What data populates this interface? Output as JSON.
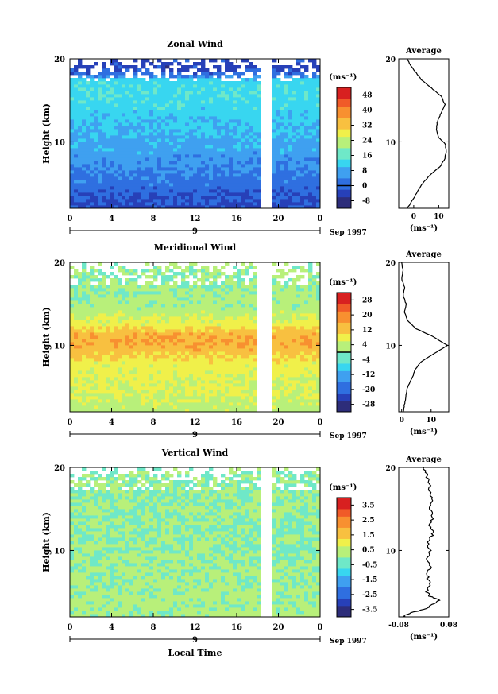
{
  "chart_data": [
    {
      "type": "heatmap",
      "title": "Zonal Wind",
      "ylabel": "Height (km)",
      "xticks": [
        "0",
        "4",
        "8",
        "12",
        "16",
        "20",
        "0"
      ],
      "yticks": [
        "10",
        "20"
      ],
      "ylim": [
        2,
        20
      ],
      "xlim": [
        0,
        24
      ],
      "date_ticks": [
        "9"
      ],
      "date_label": "Sep 1997",
      "colorbar": {
        "unit": "(ms⁻¹)",
        "ticks": [
          "-8",
          "0",
          "8",
          "16",
          "24",
          "32",
          "40",
          "48"
        ],
        "min": -12,
        "max": 52,
        "zero_line": 0
      },
      "profile_by_height": [
        {
          "h": 2,
          "v": -3
        },
        {
          "h": 4,
          "v": 0
        },
        {
          "h": 6,
          "v": 3
        },
        {
          "h": 8,
          "v": 6
        },
        {
          "h": 10,
          "v": 8
        },
        {
          "h": 12,
          "v": 10
        },
        {
          "h": 14,
          "v": 12
        },
        {
          "h": 16,
          "v": 14
        },
        {
          "h": 17.5,
          "v": 12
        },
        {
          "h": 18,
          "v": 2
        },
        {
          "h": 19,
          "v": -4
        },
        {
          "h": 20,
          "v": -2
        }
      ],
      "gap_hours": [
        [
          18.2,
          19.3
        ]
      ],
      "average": {
        "title": "Average",
        "xlabel": "(ms⁻¹)",
        "xticks": [
          "0",
          "10"
        ],
        "xlim": [
          -6,
          14
        ],
        "points": [
          {
            "h": 2,
            "v": -2.5
          },
          {
            "h": 3,
            "v": -0.5
          },
          {
            "h": 4,
            "v": 1.5
          },
          {
            "h": 5,
            "v": 3.5
          },
          {
            "h": 6,
            "v": 6.5
          },
          {
            "h": 7,
            "v": 10.5
          },
          {
            "h": 8,
            "v": 12.5
          },
          {
            "h": 9,
            "v": 13
          },
          {
            "h": 9.8,
            "v": 12.5
          },
          {
            "h": 10.5,
            "v": 10
          },
          {
            "h": 11.5,
            "v": 9
          },
          {
            "h": 12.5,
            "v": 9.5
          },
          {
            "h": 13.5,
            "v": 11
          },
          {
            "h": 14.5,
            "v": 12.5
          },
          {
            "h": 15.5,
            "v": 11
          },
          {
            "h": 16.5,
            "v": 7
          },
          {
            "h": 17.5,
            "v": 3
          },
          {
            "h": 18.5,
            "v": 0.5
          },
          {
            "h": 19.3,
            "v": -1.5
          },
          {
            "h": 20,
            "v": -2.5
          }
        ]
      }
    },
    {
      "type": "heatmap",
      "title": "Meridional Wind",
      "ylabel": "Height (km)",
      "xticks": [
        "0",
        "4",
        "8",
        "12",
        "16",
        "20",
        "0"
      ],
      "yticks": [
        "10",
        "20"
      ],
      "ylim": [
        2,
        20
      ],
      "xlim": [
        0,
        24
      ],
      "date_ticks": [
        "9"
      ],
      "date_label": "Sep 1997",
      "colorbar": {
        "unit": "(ms⁻¹)",
        "ticks": [
          "-28",
          "-20",
          "-12",
          "-4",
          "4",
          "12",
          "20",
          "28"
        ],
        "min": -32,
        "max": 32,
        "zero_line": 0
      },
      "profile_by_height": [
        {
          "h": 2,
          "v": 3
        },
        {
          "h": 4,
          "v": 5
        },
        {
          "h": 6,
          "v": 6
        },
        {
          "h": 8,
          "v": 8
        },
        {
          "h": 9.5,
          "v": 14
        },
        {
          "h": 10.5,
          "v": 16
        },
        {
          "h": 11.5,
          "v": 14
        },
        {
          "h": 12.5,
          "v": 8
        },
        {
          "h": 14,
          "v": 3
        },
        {
          "h": 16,
          "v": 1
        },
        {
          "h": 18,
          "v": 0
        },
        {
          "h": 20,
          "v": 1
        }
      ],
      "gap_hours": [
        [
          17.9,
          19.6
        ]
      ],
      "average": {
        "title": "Average",
        "xlabel": "(ms⁻¹)",
        "xticks": [
          "0",
          "10"
        ],
        "xlim": [
          -1,
          16
        ],
        "points": [
          {
            "h": 2,
            "v": 0.5
          },
          {
            "h": 3,
            "v": 1
          },
          {
            "h": 4,
            "v": 1.5
          },
          {
            "h": 5,
            "v": 2
          },
          {
            "h": 6,
            "v": 3.5
          },
          {
            "h": 7,
            "v": 4.5
          },
          {
            "h": 8,
            "v": 6.5
          },
          {
            "h": 9,
            "v": 11
          },
          {
            "h": 10,
            "v": 15.5
          },
          {
            "h": 11,
            "v": 11
          },
          {
            "h": 12,
            "v": 5
          },
          {
            "h": 13,
            "v": 2
          },
          {
            "h": 14,
            "v": 1
          },
          {
            "h": 15,
            "v": 1.5
          },
          {
            "h": 16,
            "v": 0.5
          },
          {
            "h": 17,
            "v": 1
          },
          {
            "h": 18,
            "v": 0
          },
          {
            "h": 19,
            "v": 0.5
          },
          {
            "h": 20,
            "v": 0
          }
        ]
      }
    },
    {
      "type": "heatmap",
      "title": "Vertical Wind",
      "ylabel": "Height (km)",
      "xlabel": "Local Time",
      "xticks": [
        "0",
        "4",
        "8",
        "12",
        "16",
        "20",
        "0"
      ],
      "yticks": [
        "10",
        "20"
      ],
      "ylim": [
        2,
        20
      ],
      "xlim": [
        0,
        24
      ],
      "date_ticks": [
        "9"
      ],
      "date_label": "Sep 1997",
      "colorbar": {
        "unit": "(ms⁻¹)",
        "ticks": [
          "-3.5",
          "-2.5",
          "-1.5",
          "-0.5",
          "0.5",
          "1.5",
          "2.5",
          "3.5"
        ],
        "min": -4,
        "max": 4,
        "zero_line": null
      },
      "profile_by_height": [
        {
          "h": 2,
          "v": 0.2
        },
        {
          "h": 6,
          "v": 0.1
        },
        {
          "h": 10,
          "v": 0
        },
        {
          "h": 14,
          "v": 0
        },
        {
          "h": 18,
          "v": 0
        },
        {
          "h": 20,
          "v": 0
        }
      ],
      "gap_hours": [
        [
          18.1,
          19.6
        ]
      ],
      "average": {
        "title": "Average",
        "xlabel": "(ms⁻¹)",
        "xticks": [
          "-0.08",
          "0.08"
        ],
        "xlim": [
          -0.08,
          0.08
        ],
        "points": [
          {
            "h": 2,
            "v": -0.07
          },
          {
            "h": 2.5,
            "v": -0.04
          },
          {
            "h": 3,
            "v": 0.01
          },
          {
            "h": 3.5,
            "v": 0.03
          },
          {
            "h": 4,
            "v": 0.05
          },
          {
            "h": 4.5,
            "v": 0.02
          },
          {
            "h": 5,
            "v": 0.01
          },
          {
            "h": 6,
            "v": 0.02
          },
          {
            "h": 7,
            "v": 0.01
          },
          {
            "h": 8,
            "v": 0.02
          },
          {
            "h": 9,
            "v": 0.01
          },
          {
            "h": 10,
            "v": 0.02
          },
          {
            "h": 11,
            "v": 0.01
          },
          {
            "h": 12,
            "v": 0.03
          },
          {
            "h": 13,
            "v": 0.02
          },
          {
            "h": 14,
            "v": 0.03
          },
          {
            "h": 15,
            "v": 0.02
          },
          {
            "h": 16,
            "v": 0.03
          },
          {
            "h": 17,
            "v": 0.02
          },
          {
            "h": 18,
            "v": 0.02
          },
          {
            "h": 19,
            "v": 0.01
          },
          {
            "h": 20,
            "v": 0.0
          }
        ]
      }
    }
  ]
}
